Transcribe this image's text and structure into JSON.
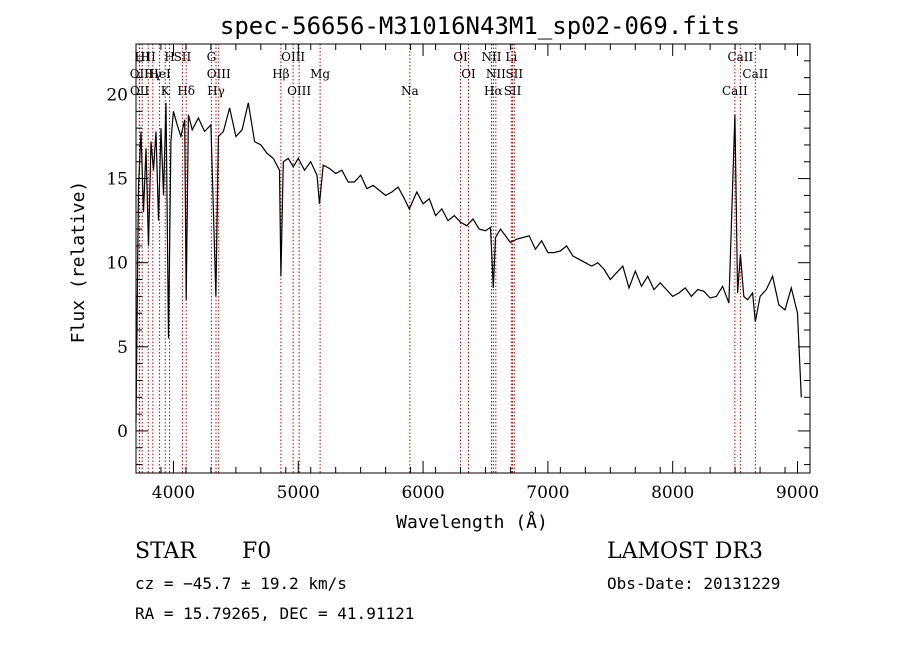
{
  "chart_data": {
    "type": "line",
    "title": "spec-56656-M31016N43M1_sp02-069.fits",
    "xlabel": "Wavelength (Å)",
    "ylabel": "Flux (relative)",
    "xlim": [
      3700,
      9100
    ],
    "ylim": [
      -2.5,
      23
    ],
    "xticks": [
      4000,
      5000,
      6000,
      7000,
      8000,
      9000
    ],
    "yticks": [
      0,
      5,
      10,
      15,
      20
    ],
    "xtick_labels": [
      "4000",
      "5000",
      "6000",
      "7000",
      "8000",
      "9000"
    ],
    "ytick_labels": [
      "0",
      "5",
      "10",
      "15",
      "20"
    ],
    "series": [
      {
        "name": "spectrum",
        "x": [
          3700,
          3720,
          3740,
          3760,
          3780,
          3800,
          3820,
          3840,
          3860,
          3880,
          3900,
          3920,
          3940,
          3960,
          3980,
          4000,
          4030,
          4060,
          4090,
          4102,
          4120,
          4150,
          4200,
          4250,
          4300,
          4340,
          4360,
          4400,
          4450,
          4500,
          4550,
          4600,
          4650,
          4700,
          4750,
          4800,
          4850,
          4861,
          4880,
          4920,
          4960,
          5000,
          5050,
          5100,
          5150,
          5170,
          5200,
          5250,
          5300,
          5350,
          5400,
          5450,
          5500,
          5550,
          5600,
          5650,
          5700,
          5750,
          5800,
          5850,
          5890,
          5950,
          6000,
          6050,
          6100,
          6150,
          6200,
          6250,
          6300,
          6350,
          6400,
          6450,
          6500,
          6540,
          6563,
          6580,
          6620,
          6660,
          6700,
          6750,
          6800,
          6850,
          6900,
          6950,
          7000,
          7050,
          7100,
          7150,
          7200,
          7250,
          7300,
          7350,
          7400,
          7450,
          7500,
          7550,
          7600,
          7650,
          7700,
          7750,
          7800,
          7850,
          7900,
          7950,
          8000,
          8050,
          8100,
          8150,
          8200,
          8250,
          8300,
          8350,
          8400,
          8450,
          8498,
          8520,
          8542,
          8570,
          8600,
          8640,
          8662,
          8700,
          8750,
          8800,
          8850,
          8900,
          8950,
          9000,
          9030
        ],
        "y": [
          0.5,
          14.5,
          17.8,
          13.0,
          16.8,
          11.0,
          17.2,
          15.5,
          17.8,
          12.5,
          18.0,
          14.0,
          19.5,
          5.5,
          17.2,
          19.0,
          18.2,
          17.5,
          18.5,
          7.8,
          18.8,
          17.9,
          18.6,
          17.8,
          18.2,
          8.0,
          17.5,
          17.8,
          19.2,
          17.5,
          17.9,
          19.5,
          17.2,
          17.0,
          16.5,
          16.2,
          15.5,
          9.2,
          16.0,
          16.2,
          15.7,
          16.2,
          15.5,
          16.0,
          15.2,
          13.5,
          15.8,
          15.6,
          15.3,
          15.5,
          14.8,
          14.8,
          15.2,
          14.4,
          14.6,
          14.3,
          14.0,
          14.2,
          14.5,
          13.8,
          13.2,
          14.2,
          13.5,
          13.8,
          12.8,
          13.2,
          12.5,
          12.8,
          12.4,
          12.2,
          12.6,
          12.0,
          11.9,
          12.1,
          8.5,
          11.5,
          12.0,
          11.6,
          11.2,
          11.4,
          11.5,
          11.6,
          10.8,
          11.3,
          10.6,
          10.6,
          10.7,
          11.0,
          10.4,
          10.2,
          10.0,
          9.8,
          10.0,
          9.6,
          9.0,
          9.4,
          9.8,
          8.5,
          9.5,
          8.6,
          9.2,
          8.4,
          8.8,
          8.4,
          8.0,
          8.2,
          8.5,
          8.0,
          8.4,
          8.3,
          7.9,
          8.0,
          8.6,
          7.6,
          18.8,
          8.2,
          10.5,
          8.0,
          7.8,
          8.2,
          6.5,
          8.0,
          8.4,
          9.2,
          7.5,
          7.2,
          8.5,
          7.0,
          2.0
        ]
      }
    ],
    "spectral_lines": [
      {
        "label": "HI",
        "wavelength": 3750
      },
      {
        "label": "OII",
        "wavelength": 3727
      },
      {
        "label": "OII",
        "wavelength": 3729
      },
      {
        "label": "HI",
        "wavelength": 3798
      },
      {
        "label": "HeI",
        "wavelength": 3889
      },
      {
        "label": "K",
        "wavelength": 3934
      },
      {
        "label": "H",
        "wavelength": 3969
      },
      {
        "label": "Hγ",
        "wavelength": 3835
      },
      {
        "label": "Hδ",
        "wavelength": 4102
      },
      {
        "label": "SII",
        "wavelength": 4072
      },
      {
        "label": "OIII",
        "wavelength": 4363
      },
      {
        "label": "Hγ",
        "wavelength": 4341
      },
      {
        "label": "G",
        "wavelength": 4304
      },
      {
        "label": "Hβ",
        "wavelength": 4861
      },
      {
        "label": "OIII",
        "wavelength": 5007
      },
      {
        "label": "OIII",
        "wavelength": 4959
      },
      {
        "label": "Mg",
        "wavelength": 5175
      },
      {
        "label": "Na",
        "wavelength": 5894
      },
      {
        "label": "OI",
        "wavelength": 6300
      },
      {
        "label": "OI",
        "wavelength": 6364
      },
      {
        "label": "Hα",
        "wavelength": 6563
      },
      {
        "label": "NII",
        "wavelength": 6548
      },
      {
        "label": "NII",
        "wavelength": 6583
      },
      {
        "label": "SII",
        "wavelength": 6717
      },
      {
        "label": "Li",
        "wavelength": 6707
      },
      {
        "label": "SII",
        "wavelength": 6731
      },
      {
        "label": "CaII",
        "wavelength": 8498
      },
      {
        "label": "CaII",
        "wavelength": 8542
      },
      {
        "label": "CaII",
        "wavelength": 8662
      }
    ]
  },
  "info": {
    "object_class": "STAR",
    "subclass": "F0",
    "survey": "LAMOST DR3",
    "redshift_text": "cz = −45.7 ± 19.2 km/s",
    "obs_date_text": "Obs-Date: 20131229",
    "coords_text": "RA =  15.79265, DEC =  41.91121"
  },
  "colors": {
    "spectrum": "#000000",
    "line_markers": "#c00000",
    "axes": "#000000"
  }
}
